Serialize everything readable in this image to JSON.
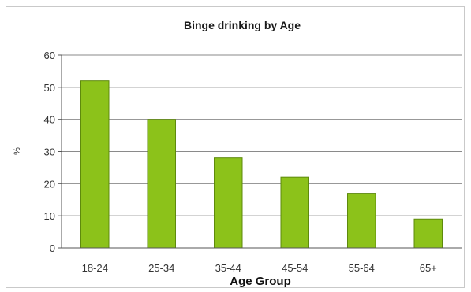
{
  "chart_data": {
    "type": "bar",
    "title": "Binge drinking by Age",
    "xlabel": "Age Group",
    "ylabel": "%",
    "categories": [
      "18-24",
      "25-34",
      "35-44",
      "45-54",
      "55-64",
      "65+"
    ],
    "values": [
      52,
      40,
      28,
      22,
      17,
      9
    ],
    "ylim": [
      0,
      60
    ],
    "yticks": [
      0,
      10,
      20,
      30,
      40,
      50,
      60
    ],
    "grid": true,
    "legend": "none",
    "bar_color": "#8cc21a",
    "bar_stroke": "#5e8a0c"
  }
}
